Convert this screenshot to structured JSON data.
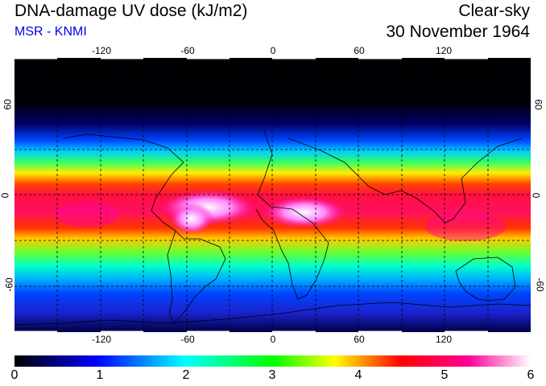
{
  "header": {
    "title": "DNA-damage UV dose (kJ/m2)",
    "subtitle": "MSR - KNMI",
    "sky_condition": "Clear-sky",
    "date": "30 November 1964"
  },
  "map": {
    "longitude_ticks": [
      "-120",
      "-60",
      "0",
      "60",
      "120"
    ],
    "latitude_ticks": [
      "60",
      "0",
      "-60"
    ],
    "lon_range": [
      -180,
      180
    ],
    "lat_range": [
      -90,
      90
    ]
  },
  "colorbar": {
    "labels": [
      "0",
      "1",
      "2",
      "3",
      "4",
      "5",
      "6"
    ],
    "range": [
      0,
      6
    ],
    "colors": [
      "#000000",
      "#0000ff",
      "#00ffff",
      "#00ff00",
      "#ffff00",
      "#ff0000",
      "#ff0099",
      "#ffffff"
    ]
  }
}
